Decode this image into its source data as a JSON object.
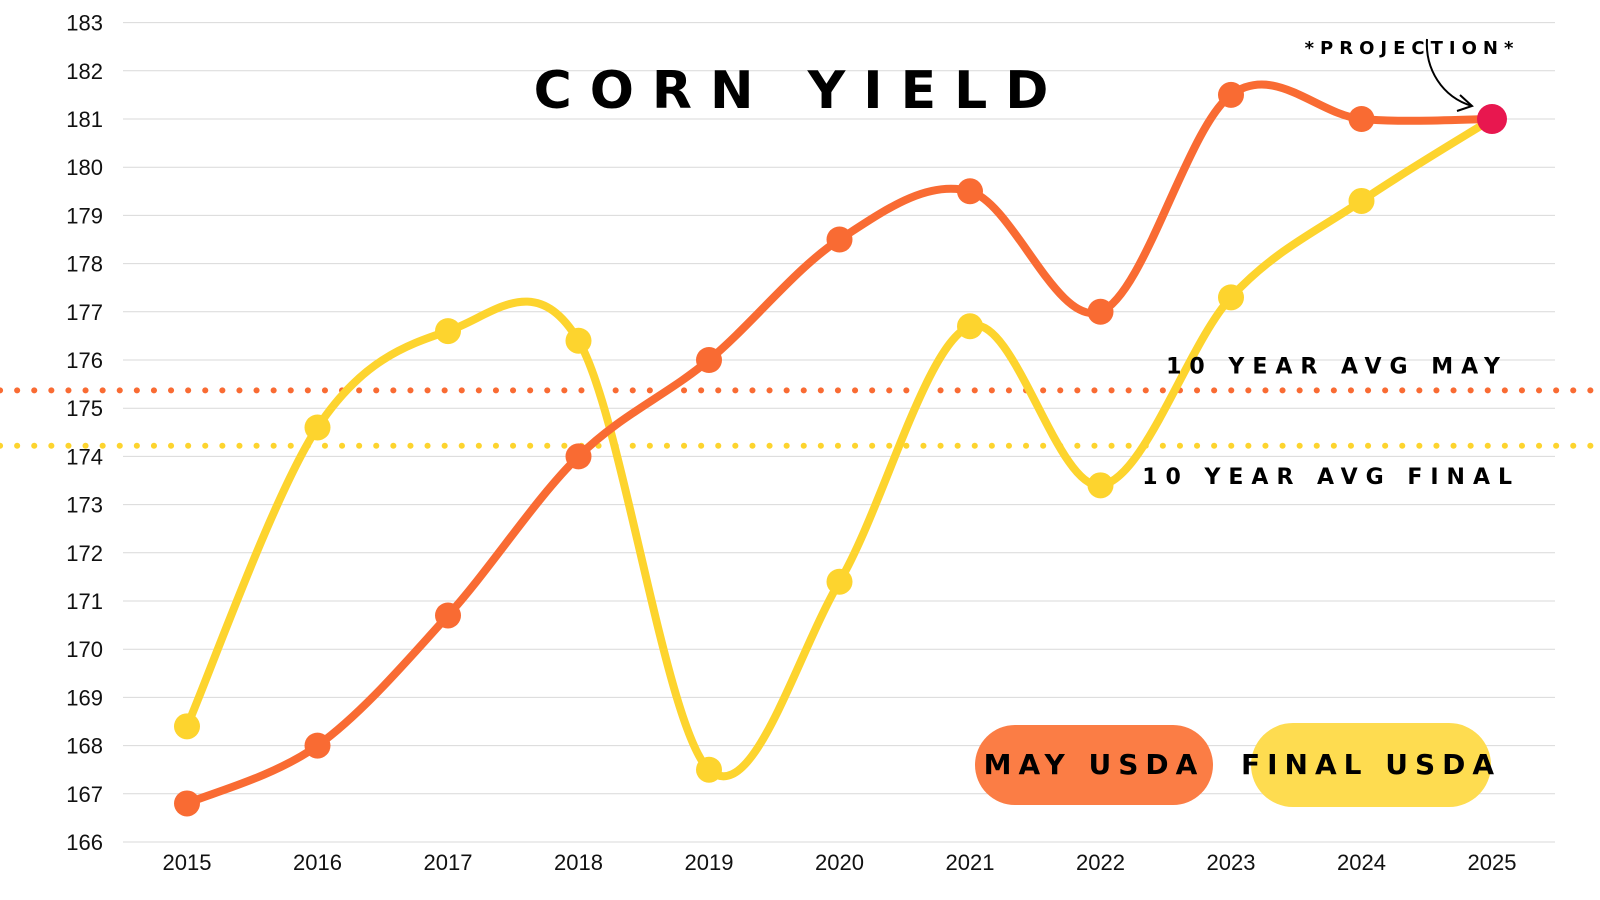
{
  "chart_data": {
    "type": "line",
    "title": "CORN YIELD",
    "xlabel": "",
    "ylabel": "",
    "categories": [
      "2015",
      "2016",
      "2017",
      "2018",
      "2019",
      "2020",
      "2021",
      "2022",
      "2023",
      "2024",
      "2025"
    ],
    "ylim": [
      166,
      183
    ],
    "y_ticks": [
      166,
      167,
      168,
      169,
      170,
      171,
      172,
      173,
      174,
      175,
      176,
      177,
      178,
      179,
      180,
      181,
      182,
      183
    ],
    "grid": true,
    "series": [
      {
        "name": "MAY USDA",
        "color": "#F96B33",
        "values": [
          166.8,
          168.0,
          170.7,
          174.0,
          176.0,
          178.5,
          179.5,
          177.0,
          181.5,
          181.0,
          181.0
        ]
      },
      {
        "name": "FINAL USDA",
        "color": "#FDD42E",
        "values": [
          168.4,
          174.6,
          176.6,
          176.4,
          167.5,
          171.4,
          176.7,
          173.4,
          177.3,
          179.3,
          181.0
        ]
      }
    ],
    "reference_lines": [
      {
        "label": "10 YEAR AVG MAY",
        "value": 175.37,
        "color": "#F96B33"
      },
      {
        "label": "10 YEAR AVG FINAL",
        "value": 174.22,
        "color": "#FDD42E"
      }
    ],
    "annotations": [
      {
        "text": "*PROJECTION*",
        "target_category": "2025"
      }
    ],
    "projection_marker_color": "#E8174F",
    "legend": {
      "position": "bottom-right",
      "items": [
        {
          "label": "MAY USDA",
          "color": "#FB7D45"
        },
        {
          "label": "FINAL USDA",
          "color": "#FEDC50"
        }
      ]
    },
    "gridline_color": "#d9d9d9"
  }
}
